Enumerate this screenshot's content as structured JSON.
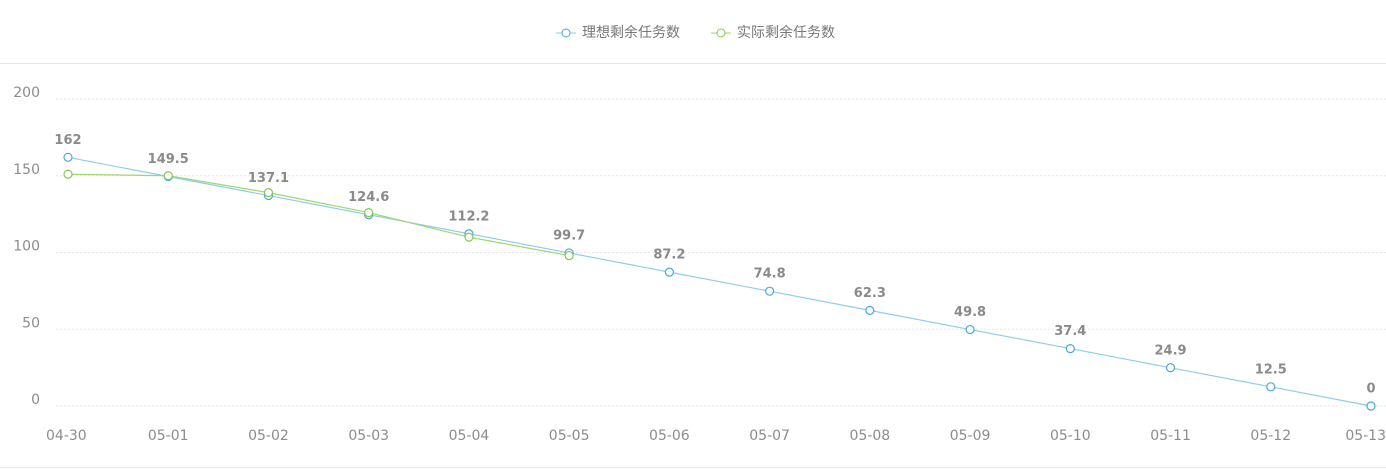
{
  "chart_data": {
    "type": "line",
    "categories": [
      "04-30",
      "05-01",
      "05-02",
      "05-03",
      "05-04",
      "05-05",
      "05-06",
      "05-07",
      "05-08",
      "05-09",
      "05-10",
      "05-11",
      "05-12",
      "05-13"
    ],
    "series": [
      {
        "name": "理想剩余任务数",
        "color": "#4aa8dc",
        "line_color": "#8fcdeb",
        "values": [
          162,
          149.5,
          137.1,
          124.6,
          112.2,
          99.7,
          87.2,
          74.8,
          62.3,
          49.8,
          37.4,
          24.9,
          12.5,
          0
        ],
        "show_labels": true
      },
      {
        "name": "实际剩余任务数",
        "color": "#86c752",
        "line_color": "#9fd672",
        "values": [
          151,
          150,
          139,
          126,
          110,
          98,
          null,
          null,
          null,
          null,
          null,
          null,
          null,
          null
        ],
        "show_labels": false
      }
    ],
    "ylim": [
      0,
      200
    ],
    "yticks": [
      0,
      50,
      100,
      150,
      200
    ],
    "grid": true,
    "legend": "top"
  }
}
